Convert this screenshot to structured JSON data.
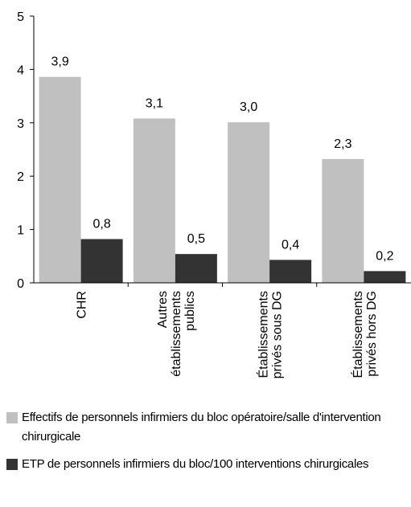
{
  "chart_data": {
    "type": "bar",
    "categories": [
      "CHR",
      "Autres établissements publics",
      "Établissements privés sous DG",
      "Établissements privés hors DG"
    ],
    "series": [
      {
        "name": "Effectifs de personnels infirmiers du bloc opératoire/salle d'intervention chirurgicale",
        "color": "#c0c0c0",
        "values": [
          3.86,
          3.08,
          3.01,
          2.32
        ],
        "value_labels": [
          "3,9",
          "3,1",
          "3,0",
          "2,3"
        ]
      },
      {
        "name": "ETP de personnels infirmiers du bloc/100 interventions chirurgicales",
        "color": "#333333",
        "values": [
          0.82,
          0.54,
          0.43,
          0.22
        ],
        "value_labels": [
          "0,8",
          "0,5",
          "0,4",
          "0,2"
        ]
      }
    ],
    "ylim": [
      0,
      5
    ],
    "yticks": [
      0,
      1,
      2,
      3,
      4,
      5
    ],
    "grid": false,
    "legend": "bottom"
  }
}
